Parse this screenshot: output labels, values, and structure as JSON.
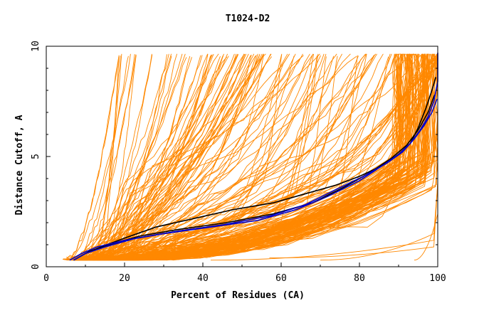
{
  "chart_data": {
    "type": "line",
    "title": "T1024-D2",
    "xlabel": "Percent of Residues (CA)",
    "ylabel": "Distance Cutoff, A",
    "xlim": [
      0,
      100
    ],
    "ylim": [
      0,
      10
    ],
    "xticks": [
      "0",
      "20",
      "40",
      "60",
      "80",
      "100"
    ],
    "yticks": [
      "0",
      "5",
      "10"
    ],
    "grid": false,
    "legend": "none",
    "colors": {
      "models": "#ff8800",
      "highlight_black": "#000000",
      "highlight_blue": "#0000cc"
    },
    "highlight_series": [
      {
        "color": "#000000",
        "x": [
          7,
          10,
          14,
          20,
          28,
          38,
          48,
          58,
          66,
          74,
          80,
          86,
          90,
          93,
          95,
          97,
          98.5,
          99.5
        ],
        "y": [
          0.3,
          0.6,
          0.9,
          1.3,
          1.8,
          2.2,
          2.6,
          2.9,
          3.3,
          3.7,
          4.1,
          4.6,
          5.1,
          5.6,
          6.3,
          7.2,
          8.0,
          8.6
        ]
      },
      {
        "color": "#000000",
        "x": [
          7,
          11,
          16,
          24,
          34,
          46,
          58,
          68,
          76,
          82,
          88,
          92,
          95,
          97.5,
          99.2
        ],
        "y": [
          0.3,
          0.7,
          1.0,
          1.4,
          1.7,
          2.0,
          2.4,
          2.9,
          3.6,
          4.2,
          4.9,
          5.5,
          6.2,
          7.0,
          7.8
        ]
      },
      {
        "color": "#0000cc",
        "x": [
          6,
          9,
          13,
          20,
          30,
          42,
          54,
          64,
          72,
          80,
          86,
          90,
          93,
          95.5,
          97.5,
          99,
          100,
          100
        ],
        "y": [
          0.3,
          0.6,
          0.9,
          1.2,
          1.5,
          1.8,
          2.1,
          2.6,
          3.2,
          3.9,
          4.6,
          5.1,
          5.6,
          6.2,
          6.8,
          7.5,
          8.4,
          9.7
        ]
      },
      {
        "color": "#0000cc",
        "x": [
          7,
          10,
          15,
          23,
          33,
          45,
          57,
          66,
          74,
          81,
          87,
          91,
          94,
          96.5,
          98.5,
          99.8
        ],
        "y": [
          0.3,
          0.6,
          0.9,
          1.3,
          1.6,
          1.9,
          2.3,
          2.8,
          3.5,
          4.1,
          4.7,
          5.2,
          5.8,
          6.4,
          7.0,
          7.6
        ]
      }
    ]
  }
}
